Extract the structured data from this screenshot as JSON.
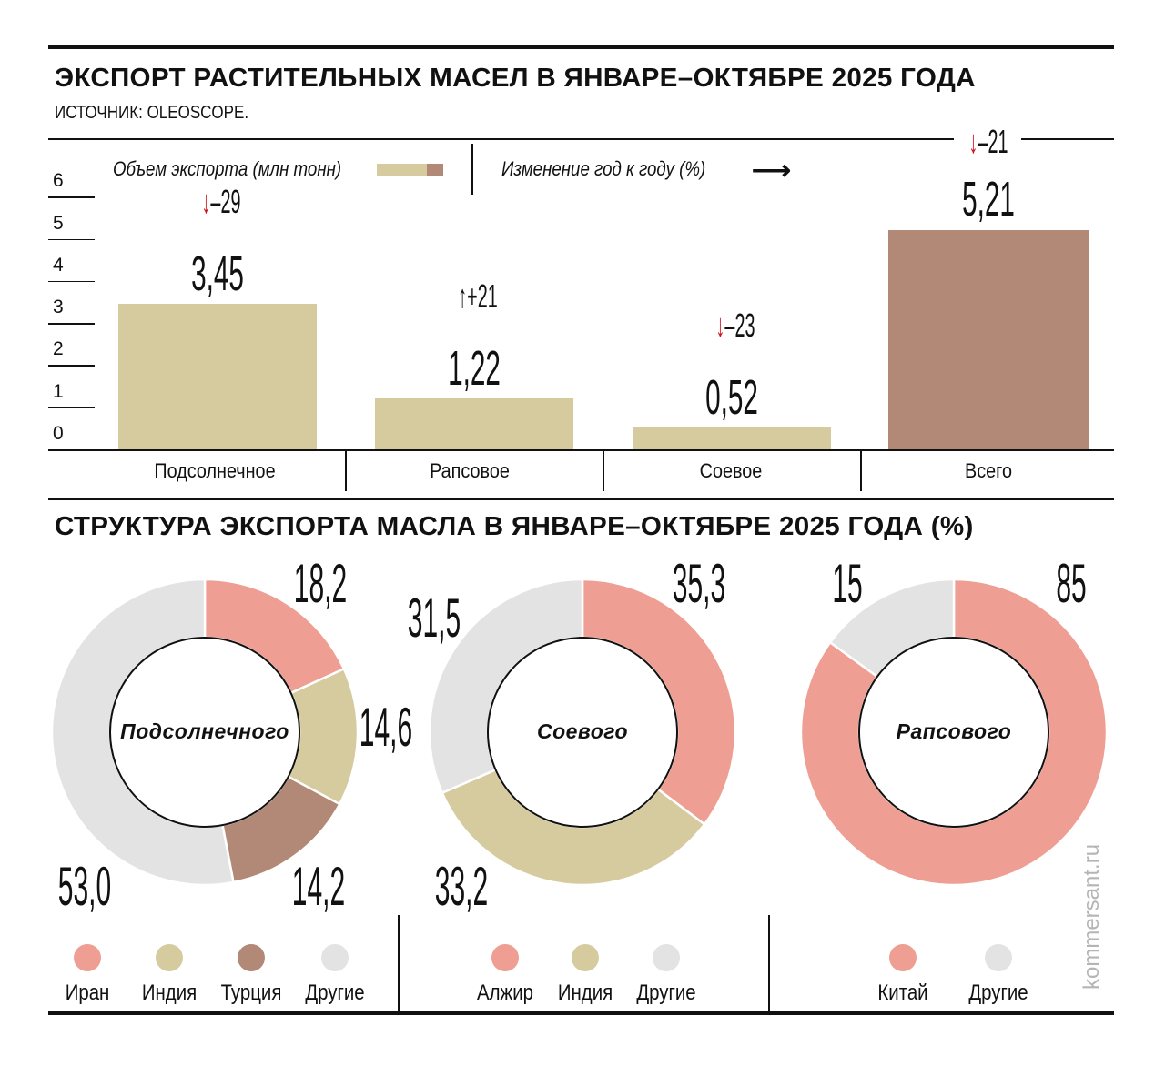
{
  "colors": {
    "iran_algeria_china": "#ee9e92",
    "india": "#d6cb9e",
    "turkey_total": "#b28877",
    "other": "#e3e3e3",
    "down_arrow": "#d0121b"
  },
  "header": {
    "title": "ЭКСПОРТ РАСТИТЕЛЬНЫХ МАСЕЛ В ЯНВАРЕ–ОКТЯБРЕ 2025 ГОДА",
    "source": "ИСТОЧНИК: OLEOSCOPE."
  },
  "chart_data": [
    {
      "type": "bar",
      "legend": {
        "volume": "Объем экспорта (млн тонн)",
        "change": "Изменение год к году (%)"
      },
      "categories": [
        "Подсолнечное",
        "Рапсовое",
        "Соевое",
        "Всего"
      ],
      "values": [
        3.45,
        1.22,
        0.52,
        5.21
      ],
      "value_labels": [
        "3,45",
        "1,22",
        "0,52",
        "5,21"
      ],
      "yoy_change": [
        -29,
        21,
        -23,
        -21
      ],
      "yoy_labels": [
        "–29",
        "+21",
        "–23",
        "–21"
      ],
      "bar_colors": [
        "#d6cb9e",
        "#d6cb9e",
        "#d6cb9e",
        "#b28877"
      ],
      "ylim": [
        0,
        6
      ],
      "yticks": [
        "0",
        "1",
        "2",
        "3",
        "4",
        "5",
        "6"
      ]
    },
    {
      "type": "pie",
      "title": "СТРУКТУРА ЭКСПОРТА МАСЛА В ЯНВАРЕ–ОКТЯБРЕ 2025 ГОДА (%)",
      "charts": [
        {
          "center": "Подсолнечного",
          "labels": [
            "Иран",
            "Индия",
            "Турция",
            "Другие"
          ],
          "values": [
            18.2,
            14.6,
            14.2,
            53.0
          ],
          "value_labels": [
            "18,2",
            "14,6",
            "14,2",
            "53,0"
          ],
          "colors": [
            "#ee9e92",
            "#d6cb9e",
            "#b28877",
            "#e3e3e3"
          ]
        },
        {
          "center": "Соевого",
          "labels": [
            "Алжир",
            "Индия",
            "Другие"
          ],
          "values": [
            35.3,
            33.2,
            31.5
          ],
          "value_labels": [
            "35,3",
            "33,2",
            "31,5"
          ],
          "colors": [
            "#ee9e92",
            "#d6cb9e",
            "#e3e3e3"
          ]
        },
        {
          "center": "Рапсового",
          "labels": [
            "Китай",
            "Другие"
          ],
          "values": [
            85,
            15
          ],
          "value_labels": [
            "85",
            "15"
          ],
          "colors": [
            "#ee9e92",
            "#e3e3e3"
          ]
        }
      ]
    }
  ],
  "watermark": "kommersant.ru"
}
